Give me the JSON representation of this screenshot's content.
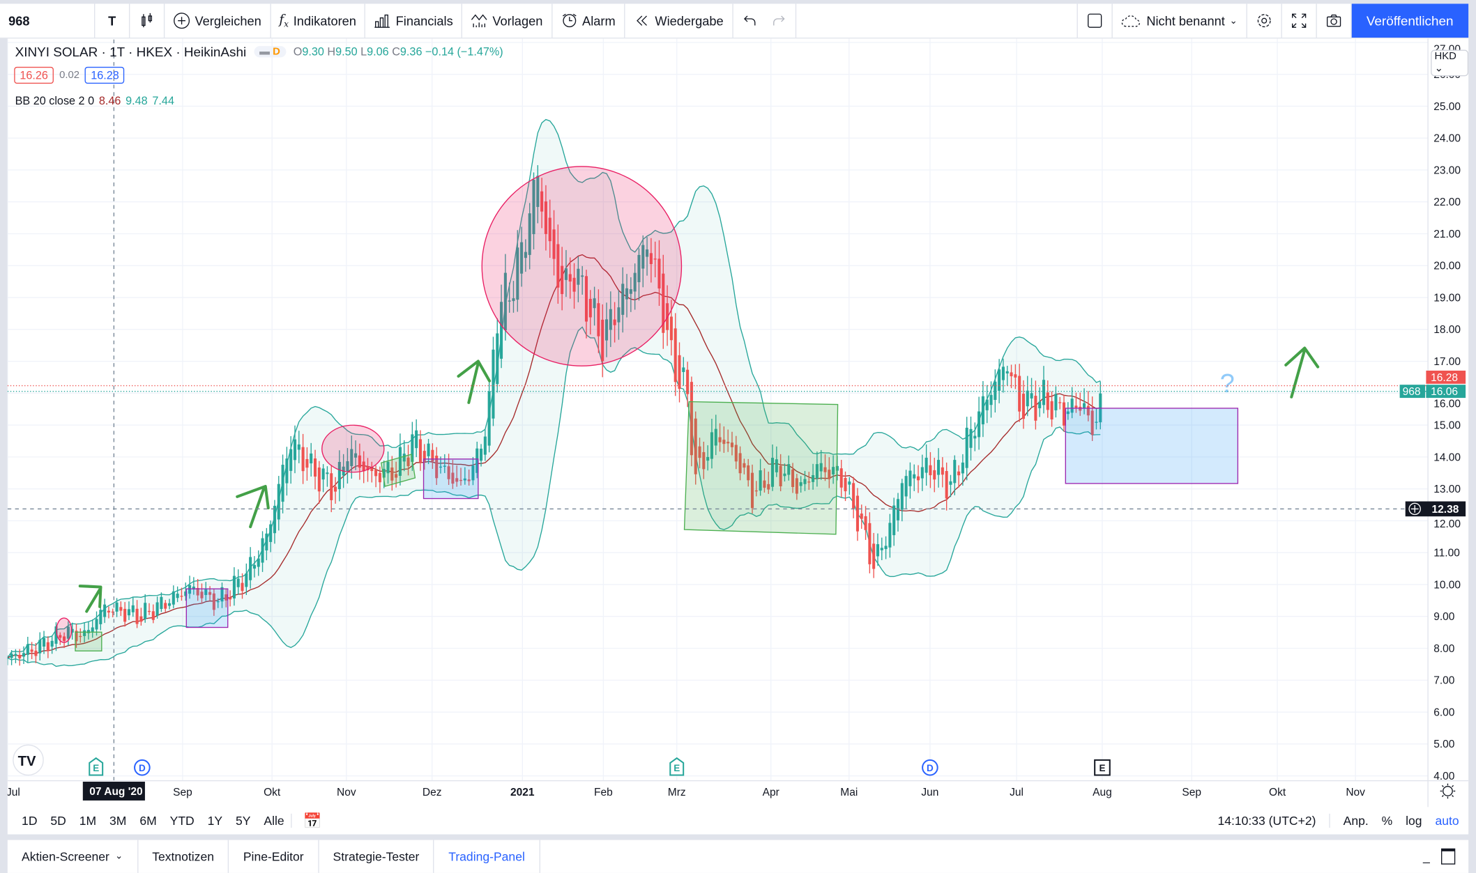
{
  "toolbar": {
    "symbol": "968",
    "interval": "T",
    "compare": "Vergleichen",
    "indicators": "Indikatoren",
    "financials": "Financials",
    "templates": "Vorlagen",
    "alert": "Alarm",
    "replay": "Wiedergabe",
    "layout_name": "Nicht benannt",
    "publish": "Veröffentlichen"
  },
  "legend": {
    "title": "XINYI SOLAR · 1T · HKEX · HeikinAshi",
    "badge": "D",
    "o_label": "O",
    "o": "9.30",
    "h_label": "H",
    "h": "9.50",
    "l_label": "L",
    "l": "9.06",
    "c_label": "C",
    "c": "9.36",
    "change": "−0.14 (−1.47%)",
    "bid": "16.26",
    "spread": "0.02",
    "ask": "16.28",
    "bb_label": "BB 20 close 2 0",
    "bb_basis": "8.46",
    "bb_upper": "9.48",
    "bb_lower": "7.44"
  },
  "price_axis": {
    "currency": "HKD",
    "ticks": [
      "27.00",
      "26.00",
      "25.00",
      "24.00",
      "23.00",
      "22.00",
      "21.00",
      "20.00",
      "19.00",
      "18.00",
      "17.00",
      "16.00",
      "15.00",
      "14.00",
      "13.00",
      "12.00",
      "11.00",
      "10.00",
      "9.00",
      "8.00",
      "7.00",
      "6.00",
      "5.00",
      "4.00"
    ],
    "ask_tag": "16.28",
    "last_tag": "16.06",
    "symbol_tag": "968",
    "crosshair_tag": "12.38"
  },
  "time_axis": {
    "labels": [
      "Jul",
      "Sep",
      "Okt",
      "Nov",
      "Dez",
      "2021",
      "Feb",
      "Mrz",
      "Apr",
      "Mai",
      "Jun",
      "Jul",
      "Aug",
      "Sep",
      "Okt",
      "Nov"
    ],
    "crosshair_date": "07 Aug '20",
    "events": [
      "E",
      "D",
      "E",
      "D",
      "E"
    ]
  },
  "annotation": {
    "question": "?"
  },
  "bottom": {
    "ranges": [
      "1D",
      "5D",
      "1M",
      "3M",
      "6M",
      "YTD",
      "1Y",
      "5Y",
      "Alle"
    ],
    "clock": "14:10:33 (UTC+2)",
    "adjust": "Anp.",
    "percent": "%",
    "log": "log",
    "auto": "auto"
  },
  "tabs": [
    "Aktien-Screener",
    "Textnotizen",
    "Pine-Editor",
    "Strategie-Tester",
    "Trading-Panel"
  ],
  "colors": {
    "up": "#26a69a",
    "down": "#ef5350",
    "accent": "#2962ff",
    "bb_basis": "#a52a2a",
    "bb_band": "#26a69a"
  },
  "chart_data": {
    "type": "candlestick",
    "style": "HeikinAshi",
    "symbol": "968",
    "ylim": [
      4,
      27
    ],
    "candle_count": 271,
    "close_path": [
      [
        0,
        7.7
      ],
      [
        7,
        8.0
      ],
      [
        14,
        8.5
      ],
      [
        19,
        8.4
      ],
      [
        24,
        9.3
      ],
      [
        33,
        9.0
      ],
      [
        39,
        9.45
      ],
      [
        45,
        9.9
      ],
      [
        52,
        9.45
      ],
      [
        59,
        10.3
      ],
      [
        64,
        11.5
      ],
      [
        68,
        13.6
      ],
      [
        70,
        14.5
      ],
      [
        75,
        13.6
      ],
      [
        81,
        13.0
      ],
      [
        84,
        14.2
      ],
      [
        90,
        13.4
      ],
      [
        96,
        13.6
      ],
      [
        100,
        14.5
      ],
      [
        106,
        13.7
      ],
      [
        112,
        13.1
      ],
      [
        116,
        13.9
      ],
      [
        119,
        15.6
      ],
      [
        121,
        18.6
      ],
      [
        125,
        19.5
      ],
      [
        128,
        21.0
      ],
      [
        131,
        22.9
      ],
      [
        133,
        21.0
      ],
      [
        137,
        19.2
      ],
      [
        140,
        19.8
      ],
      [
        143,
        18.9
      ],
      [
        147,
        17.6
      ],
      [
        150,
        18.6
      ],
      [
        154,
        19.5
      ],
      [
        158,
        20.8
      ],
      [
        161,
        19.2
      ],
      [
        164,
        17.1
      ],
      [
        168,
        15.9
      ],
      [
        170,
        13.3
      ],
      [
        175,
        14.8
      ],
      [
        180,
        14.0
      ],
      [
        184,
        12.8
      ],
      [
        190,
        13.7
      ],
      [
        196,
        13.0
      ],
      [
        200,
        13.7
      ],
      [
        206,
        13.4
      ],
      [
        211,
        11.8
      ],
      [
        214,
        10.6
      ],
      [
        218,
        11.8
      ],
      [
        221,
        13.3
      ],
      [
        228,
        13.7
      ],
      [
        233,
        13.1
      ],
      [
        238,
        14.8
      ],
      [
        242,
        15.9
      ],
      [
        247,
        17.0
      ],
      [
        250,
        15.6
      ],
      [
        256,
        15.8
      ],
      [
        261,
        15.4
      ],
      [
        266,
        15.7
      ],
      [
        268,
        14.6
      ],
      [
        270,
        16.1
      ]
    ],
    "bollinger": {
      "length": 20,
      "source": "close",
      "mult": 2
    }
  }
}
